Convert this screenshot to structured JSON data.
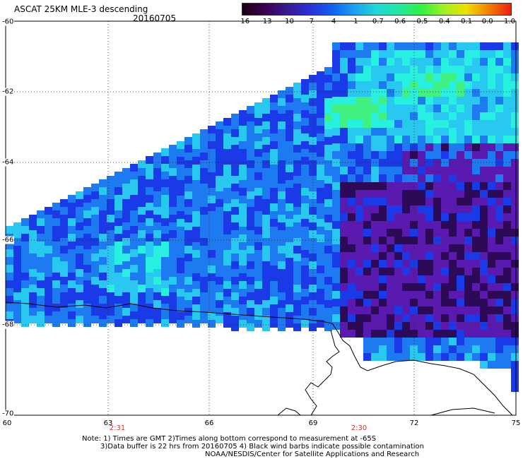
{
  "header": {
    "title": "ASCAT 25KM MLE-3 descending",
    "date": "20160705"
  },
  "colorbar": {
    "ticks": [
      "-16",
      "-13",
      "-10",
      "-7",
      "-4",
      "-1",
      "-0.7",
      "-0.6",
      "-0.5",
      "-0.4",
      "-0.1",
      "0.0",
      "1.0"
    ],
    "colors": [
      "#1a0010",
      "#3a0050",
      "#3a1a90",
      "#2a30d8",
      "#1060f0",
      "#1aa0f0",
      "#20d8d8",
      "#20e8a0",
      "#30f040",
      "#a0f020",
      "#f0e000",
      "#f08000",
      "#e82010"
    ]
  },
  "axes": {
    "y_labels": [
      "-60",
      "-62",
      "-64",
      "-66",
      "-68",
      "-70"
    ],
    "x_labels": [
      "60",
      "63",
      "66",
      "69",
      "72",
      "75"
    ],
    "times": [
      "2:31",
      "2:30"
    ]
  },
  "footer": {
    "line1": "Note: 1) Times are GMT 2)Times along bottom correspond to measurement at -65S",
    "line2": "3)Data buffer is 22 hrs from 20160705 4) Black wind barbs indicate possible contamination",
    "line3": "NOAA/NESDIS/Center for Satellite Applications and Research"
  },
  "map_colors": {
    "dark": "#2c0a58",
    "violet": "#5a1ab0",
    "blue": "#1a3ae8",
    "mid": "#1e7af0",
    "light": "#28c8f0",
    "cyan": "#28f0e0",
    "green": "#40f080"
  }
}
